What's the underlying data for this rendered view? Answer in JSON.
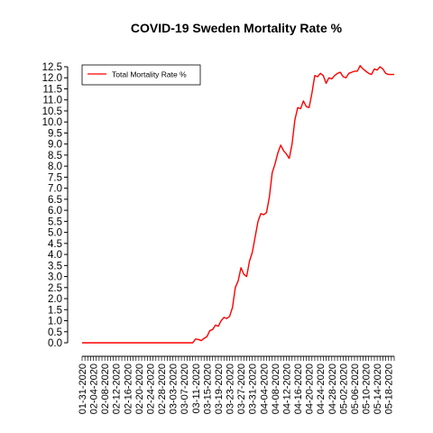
{
  "chart_data": {
    "type": "line",
    "title": "COVID-19 Sweden Mortality Rate %",
    "xlabel": "",
    "ylabel": "",
    "ylim": [
      0,
      12.5
    ],
    "y_ticks": [
      0.0,
      0.5,
      1.0,
      1.5,
      2.0,
      2.5,
      3.0,
      3.5,
      4.0,
      4.5,
      5.0,
      5.5,
      6.0,
      6.5,
      7.0,
      7.5,
      8.0,
      8.5,
      9.0,
      9.5,
      10.0,
      10.5,
      11.0,
      11.5,
      12.0,
      12.5
    ],
    "x_start": "2020-01-31",
    "x_end": "2020-05-20",
    "x_tick_labels": [
      "01-31-2020",
      "02-04-2020",
      "02-08-2020",
      "02-12-2020",
      "02-16-2020",
      "02-20-2020",
      "02-24-2020",
      "02-28-2020",
      "03-03-2020",
      "03-07-2020",
      "03-11-2020",
      "03-15-2020",
      "03-19-2020",
      "03-23-2020",
      "03-27-2020",
      "03-31-2020",
      "04-04-2020",
      "04-08-2020",
      "04-12-2020",
      "04-16-2020",
      "04-20-2020",
      "04-24-2020",
      "04-28-2020",
      "05-02-2020",
      "05-06-2020",
      "05-10-2020",
      "05-14-2020",
      "05-18-2020"
    ],
    "grid": false,
    "legend": {
      "position": "top-left",
      "entries": [
        "Total Mortality Rate %"
      ]
    },
    "series": [
      {
        "name": "Total Mortality Rate %",
        "color": "#ff0000",
        "points": [
          [
            "2020-01-31",
            0.0
          ],
          [
            "2020-03-10",
            0.0
          ],
          [
            "2020-03-11",
            0.17
          ],
          [
            "2020-03-12",
            0.15
          ],
          [
            "2020-03-13",
            0.1
          ],
          [
            "2020-03-14",
            0.2
          ],
          [
            "2020-03-15",
            0.28
          ],
          [
            "2020-03-16",
            0.55
          ],
          [
            "2020-03-17",
            0.6
          ],
          [
            "2020-03-18",
            0.8
          ],
          [
            "2020-03-19",
            0.75
          ],
          [
            "2020-03-20",
            1.0
          ],
          [
            "2020-03-21",
            1.15
          ],
          [
            "2020-03-22",
            1.1
          ],
          [
            "2020-03-23",
            1.2
          ],
          [
            "2020-03-24",
            1.6
          ],
          [
            "2020-03-25",
            2.5
          ],
          [
            "2020-03-26",
            2.8
          ],
          [
            "2020-03-27",
            3.4
          ],
          [
            "2020-03-28",
            3.1
          ],
          [
            "2020-03-29",
            3.0
          ],
          [
            "2020-03-30",
            3.7
          ],
          [
            "2020-03-31",
            4.1
          ],
          [
            "2020-04-01",
            4.8
          ],
          [
            "2020-04-02",
            5.5
          ],
          [
            "2020-04-03",
            5.85
          ],
          [
            "2020-04-04",
            5.8
          ],
          [
            "2020-04-05",
            5.9
          ],
          [
            "2020-04-06",
            6.6
          ],
          [
            "2020-04-07",
            7.7
          ],
          [
            "2020-04-08",
            8.1
          ],
          [
            "2020-04-09",
            8.6
          ],
          [
            "2020-04-10",
            8.95
          ],
          [
            "2020-04-11",
            8.7
          ],
          [
            "2020-04-12",
            8.55
          ],
          [
            "2020-04-13",
            8.35
          ],
          [
            "2020-04-14",
            9.0
          ],
          [
            "2020-04-15",
            10.1
          ],
          [
            "2020-04-16",
            10.65
          ],
          [
            "2020-04-17",
            10.6
          ],
          [
            "2020-04-18",
            10.95
          ],
          [
            "2020-04-19",
            10.7
          ],
          [
            "2020-04-20",
            10.65
          ],
          [
            "2020-04-21",
            11.3
          ],
          [
            "2020-04-22",
            12.1
          ],
          [
            "2020-04-23",
            12.05
          ],
          [
            "2020-04-24",
            12.2
          ],
          [
            "2020-04-25",
            12.1
          ],
          [
            "2020-04-26",
            11.75
          ],
          [
            "2020-04-27",
            12.0
          ],
          [
            "2020-04-28",
            11.95
          ],
          [
            "2020-04-29",
            12.1
          ],
          [
            "2020-04-30",
            12.2
          ],
          [
            "2020-05-01",
            12.25
          ],
          [
            "2020-05-02",
            12.05
          ],
          [
            "2020-05-03",
            12.0
          ],
          [
            "2020-05-04",
            12.2
          ],
          [
            "2020-05-05",
            12.25
          ],
          [
            "2020-05-06",
            12.3
          ],
          [
            "2020-05-07",
            12.3
          ],
          [
            "2020-05-08",
            12.55
          ],
          [
            "2020-05-09",
            12.4
          ],
          [
            "2020-05-10",
            12.3
          ],
          [
            "2020-05-11",
            12.2
          ],
          [
            "2020-05-12",
            12.15
          ],
          [
            "2020-05-13",
            12.4
          ],
          [
            "2020-05-14",
            12.35
          ],
          [
            "2020-05-15",
            12.5
          ],
          [
            "2020-05-16",
            12.4
          ],
          [
            "2020-05-17",
            12.2
          ],
          [
            "2020-05-18",
            12.15
          ],
          [
            "2020-05-19",
            12.15
          ],
          [
            "2020-05-20",
            12.15
          ]
        ]
      }
    ]
  }
}
